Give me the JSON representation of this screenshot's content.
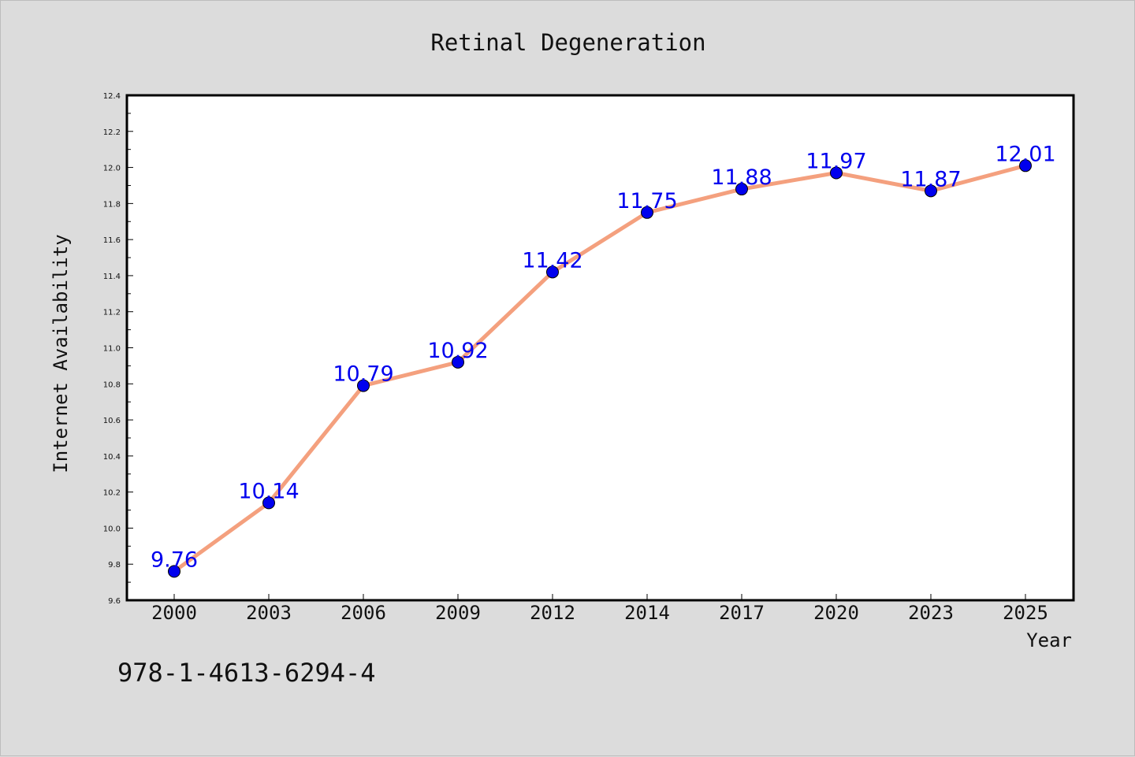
{
  "chart_data": {
    "type": "line",
    "title": "Retinal Degeneration",
    "xlabel": "Year",
    "ylabel": "Internet Availability",
    "categories": [
      "2000",
      "2003",
      "2006",
      "2009",
      "2012",
      "2014",
      "2017",
      "2020",
      "2023",
      "2025"
    ],
    "series": [
      {
        "values": [
          9.76,
          10.14,
          10.79,
          10.92,
          11.42,
          11.75,
          11.88,
          11.97,
          11.87,
          12.01
        ],
        "line_color": "#f4a07e",
        "marker_color": "#0000ee"
      }
    ],
    "data_labels": [
      "9.76",
      "10.14",
      "10.79",
      "10.92",
      "11.42",
      "11.75",
      "11.88",
      "11.97",
      "11.87",
      "12.01"
    ],
    "ylim": [
      9.6,
      12.4
    ],
    "yticks": [
      "9.6",
      "9.8",
      "10.0",
      "10.2",
      "10.4",
      "10.6",
      "10.8",
      "11.0",
      "11.2",
      "11.4",
      "11.6",
      "11.8",
      "12.0",
      "12.2",
      "12.4"
    ],
    "grid": false,
    "legend": "none"
  },
  "caption": "978-1-4613-6294-4",
  "colors": {
    "background": "#dcdcdc",
    "plot_background": "#ffffff",
    "axis": "#000000",
    "label_text": "#0000ee"
  }
}
